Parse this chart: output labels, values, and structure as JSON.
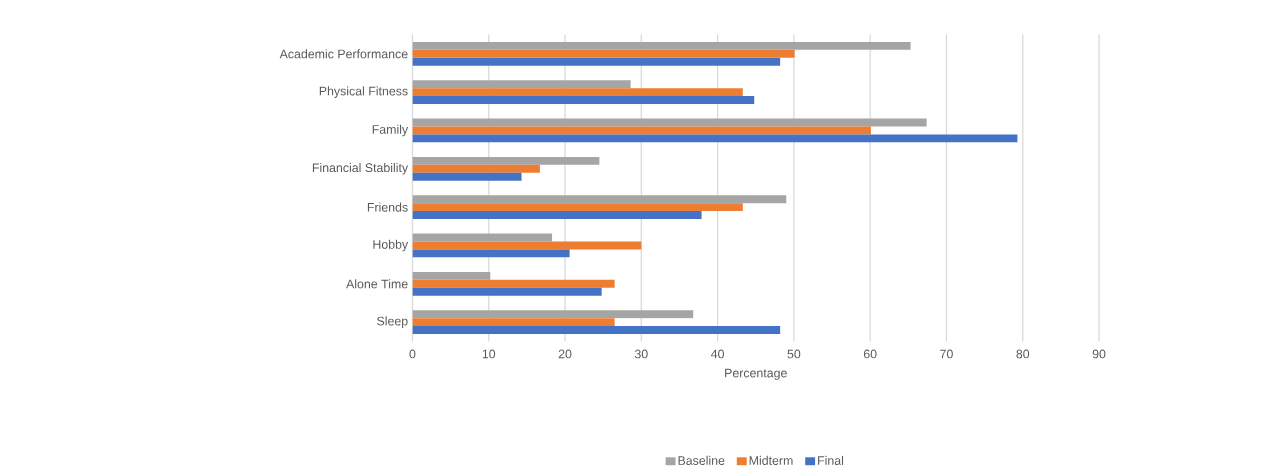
{
  "chart_data": {
    "type": "bar",
    "orientation": "horizontal",
    "xlabel": "Percentage",
    "categories": [
      "Academic Performance",
      "Physical Fitness",
      "Family",
      "Financial Stability",
      "Friends",
      "Hobby",
      "Alone Time",
      "Sleep"
    ],
    "series": [
      {
        "name": "Baseline",
        "color": "#a5a5a5",
        "values": [
          65.3,
          28.6,
          67.4,
          24.5,
          49.0,
          18.3,
          10.2,
          36.8
        ]
      },
      {
        "name": "Midterm",
        "color": "#ed7d31",
        "values": [
          50.1,
          43.3,
          60.1,
          16.7,
          43.3,
          30.0,
          26.5,
          26.5
        ]
      },
      {
        "name": "Final",
        "color": "#4472c4",
        "values": [
          48.2,
          44.8,
          79.3,
          14.3,
          37.9,
          20.6,
          24.8,
          48.2
        ]
      }
    ],
    "xlim": [
      0,
      90
    ],
    "xticks": [
      0,
      10,
      20,
      30,
      40,
      50,
      60,
      70,
      80,
      90
    ],
    "grid": "x",
    "legend": "bottom"
  }
}
